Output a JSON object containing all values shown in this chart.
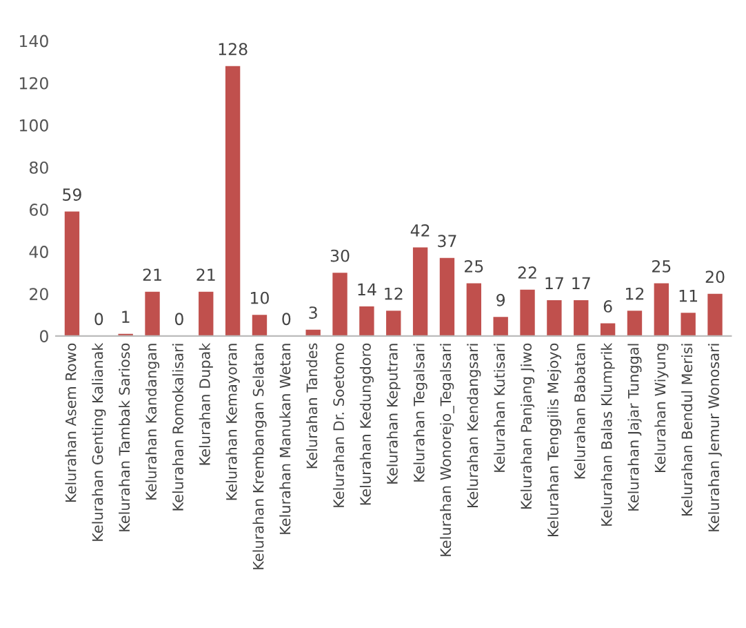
{
  "chart_data": {
    "type": "bar",
    "categories": [
      "Kelurahan Asem Rowo",
      "Kelurahan Genting Kalianak",
      "Kelurahan Tambak Sarioso",
      "Kelurahan Kandangan",
      "Kelurahan Romokalisari",
      "Kelurahan Dupak",
      "Kelurahan Kemayoran",
      "Kelurahan Krembangan Selatan",
      "Kelurahan Manukan Wetan",
      "Kelurahan Tandes",
      "Kelurahan Dr. Soetomo",
      "Kelurahan Kedungdoro",
      "Kelurahan Keputran",
      "Kelurahan Tegalsari",
      "Kelurahan Wonorejo_Tegalsari",
      "Kelurahan Kendangsari",
      "Kelurahan Kutisari",
      "Kelurahan Panjang Jiwo",
      "Kelurahan Tenggilis Mejoyo",
      "Kelurahan Babatan",
      "Kelurahan Balas Klumprik",
      "Kelurahan Jajar Tunggal",
      "Kelurahan Wiyung",
      "Kelurahan Bendul Merisi",
      "Kelurahan Jemur Wonosari"
    ],
    "values": [
      59,
      0,
      1,
      21,
      0,
      21,
      128,
      10,
      0,
      3,
      30,
      14,
      12,
      42,
      37,
      25,
      9,
      22,
      17,
      17,
      6,
      12,
      25,
      11,
      20
    ],
    "color": "#c0504d",
    "ylim": [
      0,
      140
    ],
    "yticks": [
      0,
      20,
      40,
      60,
      80,
      100,
      120,
      140
    ],
    "data_labels": true,
    "grid": false
  }
}
